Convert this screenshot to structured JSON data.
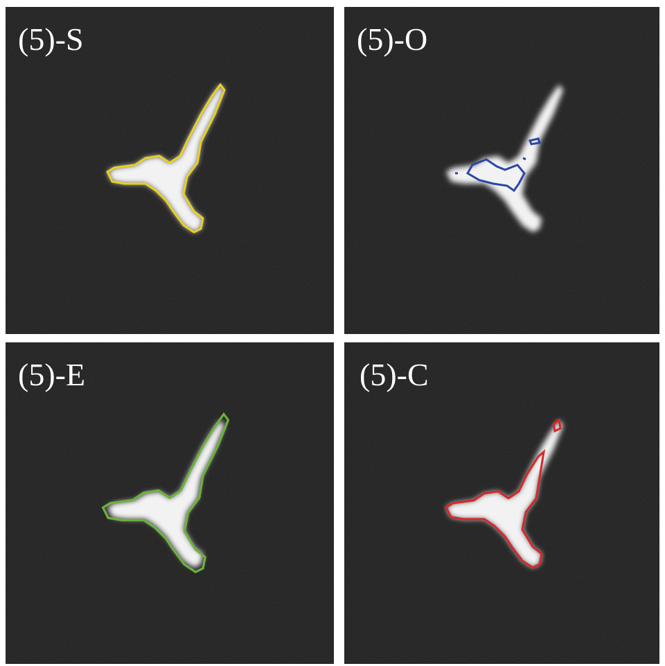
{
  "panels": [
    {
      "label": "(5)-S"
    },
    {
      "label": "(5)-O"
    },
    {
      "label": "(5)-E"
    },
    {
      "label": "(5)-C"
    }
  ]
}
